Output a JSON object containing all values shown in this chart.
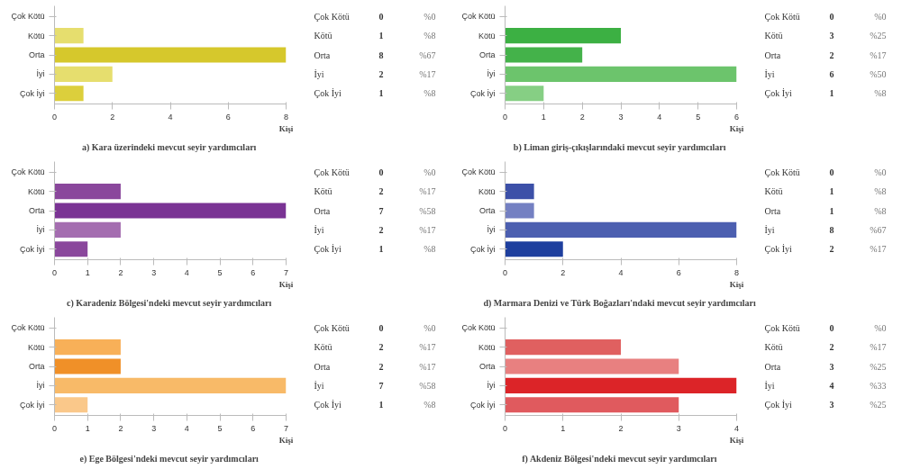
{
  "chart_data": [
    {
      "type": "bar",
      "orientation": "horizontal",
      "title": "a)  Kara üzerindeki mevcut seyir yardımcıları",
      "xlabel": "Kişi",
      "categories": [
        "Çok Kötü",
        "Kötü",
        "Orta",
        "İyi",
        "Çok İyi"
      ],
      "values": [
        0,
        1,
        8,
        2,
        1
      ],
      "colors": [
        "#e6de6e",
        "#e6de6e",
        "#d6c82c",
        "#e6de6e",
        "#dccf3c"
      ],
      "data_labels": true,
      "annotations": [
        "%0",
        "%8",
        "%67",
        "%17",
        "%8"
      ],
      "xlim": [
        0,
        8
      ],
      "xticks": [
        0,
        2,
        4,
        6,
        8
      ],
      "grid": false
    },
    {
      "type": "bar",
      "orientation": "horizontal",
      "title": "b)  Liman giriş-çıkışlarındaki mevcut seyir yardımcıları",
      "xlabel": "Kişi",
      "categories": [
        "Çok Kötü",
        "Kötü",
        "Orta",
        "İyi",
        "Çok İyi"
      ],
      "values": [
        0,
        3,
        2,
        6,
        1
      ],
      "colors": [
        "#3cb043",
        "#3cb043",
        "#44b24a",
        "#6cc46c",
        "#86cf84"
      ],
      "data_labels": true,
      "annotations": [
        "%0",
        "%25",
        "%17",
        "%50",
        "%8"
      ],
      "xlim": [
        0,
        6
      ],
      "xticks": [
        0,
        1,
        2,
        3,
        4,
        5,
        6
      ],
      "grid": false
    },
    {
      "type": "bar",
      "orientation": "horizontal",
      "title": "c)  Karadeniz Bölgesi'ndeki mevcut seyir yardımcıları",
      "xlabel": "Kişi",
      "categories": [
        "Çok Kötü",
        "Kötü",
        "Orta",
        "İyi",
        "Çok İyi"
      ],
      "values": [
        0,
        2,
        7,
        2,
        1
      ],
      "colors": [
        "#8a479c",
        "#8a479c",
        "#7a3394",
        "#a46db0",
        "#8a479c"
      ],
      "data_labels": true,
      "annotations": [
        "%0",
        "%17",
        "%58",
        "%17",
        "%8"
      ],
      "xlim": [
        0,
        7
      ],
      "xticks": [
        0,
        1,
        2,
        3,
        4,
        5,
        6,
        7
      ],
      "grid": false
    },
    {
      "type": "bar",
      "orientation": "horizontal",
      "title": "d)  Marmara Denizi ve Türk Boğazları'ndaki mevcut seyir yardımcıları",
      "xlabel": "Kişi",
      "categories": [
        "Çok Kötü",
        "Kötü",
        "Orta",
        "İyi",
        "Çok İyi"
      ],
      "values": [
        0,
        1,
        1,
        8,
        2
      ],
      "colors": [
        "#3c50a8",
        "#3c50a8",
        "#7480c2",
        "#4c5fb0",
        "#1e3f9e"
      ],
      "data_labels": true,
      "annotations": [
        "%0",
        "%8",
        "%8",
        "%67",
        "%17"
      ],
      "xlim": [
        0,
        8
      ],
      "xticks": [
        0,
        2,
        4,
        6,
        8
      ],
      "grid": false
    },
    {
      "type": "bar",
      "orientation": "horizontal",
      "title": "e)  Ege Bölgesi'ndeki mevcut seyir yardımcıları",
      "xlabel": "Kişi",
      "categories": [
        "Çok Kötü",
        "Kötü",
        "Orta",
        "İyi",
        "Çok İyi"
      ],
      "values": [
        0,
        2,
        2,
        7,
        1
      ],
      "colors": [
        "#f8b058",
        "#f8b058",
        "#f09028",
        "#f8ba68",
        "#fac88a"
      ],
      "data_labels": true,
      "annotations": [
        "%0",
        "%17",
        "%17",
        "%58",
        "%8"
      ],
      "xlim": [
        0,
        7
      ],
      "xticks": [
        0,
        1,
        2,
        3,
        4,
        5,
        6,
        7
      ],
      "grid": false
    },
    {
      "type": "bar",
      "orientation": "horizontal",
      "title": "f)  Akdeniz Bölgesi'ndeki mevcut seyir yardımcıları",
      "xlabel": "Kişi",
      "categories": [
        "Çok Kötü",
        "Kötü",
        "Orta",
        "İyi",
        "Çok İyi"
      ],
      "values": [
        0,
        2,
        3,
        4,
        3
      ],
      "colors": [
        "#e06060",
        "#e06060",
        "#e88080",
        "#dc2428",
        "#e05a5e"
      ],
      "data_labels": true,
      "annotations": [
        "%0",
        "%17",
        "%25",
        "%33",
        "%25"
      ],
      "xlim": [
        0,
        4
      ],
      "xticks": [
        0,
        1,
        2,
        3,
        4
      ],
      "grid": false
    }
  ]
}
